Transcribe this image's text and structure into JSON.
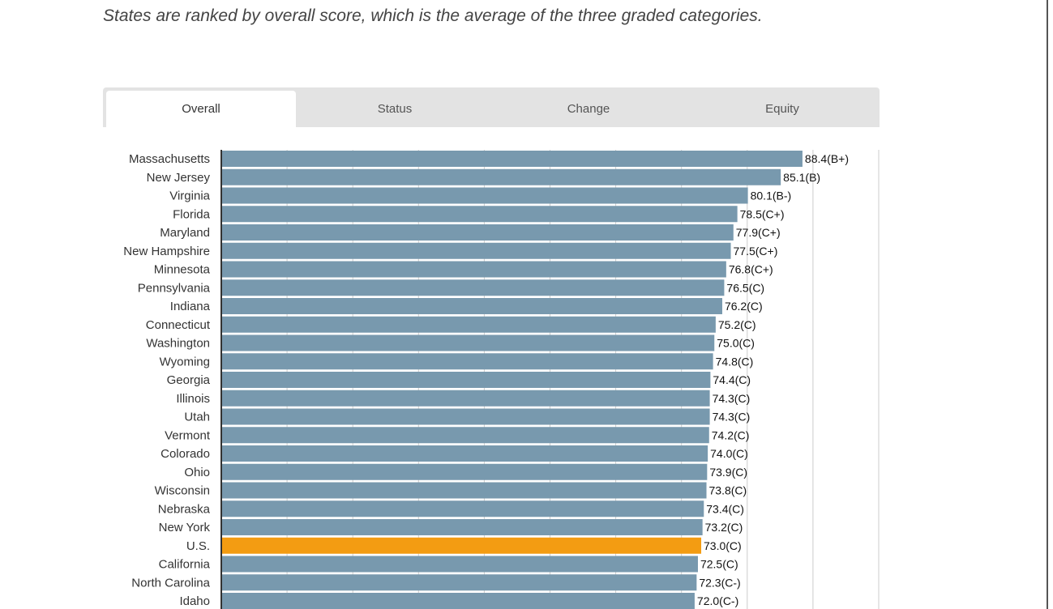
{
  "subtitle": "States are ranked by overall score, which is the average of the three graded categories.",
  "tabs": [
    {
      "label": "Overall",
      "active": true
    },
    {
      "label": "Status",
      "active": false
    },
    {
      "label": "Change",
      "active": false
    },
    {
      "label": "Equity",
      "active": false
    }
  ],
  "colors": {
    "bar": "#7899ae",
    "highlight": "#f39c12",
    "grid": "#cccccc",
    "axis": "#333333"
  },
  "chart_data": {
    "type": "bar",
    "orientation": "horizontal",
    "highlight": "U.S.",
    "xlim": [
      0,
      100
    ],
    "grid": true,
    "categories": [
      "Massachusetts",
      "New Jersey",
      "Virginia",
      "Florida",
      "Maryland",
      "New Hampshire",
      "Minnesota",
      "Pennsylvania",
      "Indiana",
      "Connecticut",
      "Washington",
      "Wyoming",
      "Georgia",
      "Illinois",
      "Utah",
      "Vermont",
      "Colorado",
      "Ohio",
      "Wisconsin",
      "Nebraska",
      "New York",
      "U.S.",
      "California",
      "North Carolina",
      "Idaho"
    ],
    "values": [
      88.4,
      85.1,
      80.1,
      78.5,
      77.9,
      77.5,
      76.8,
      76.5,
      76.2,
      75.2,
      75.0,
      74.8,
      74.4,
      74.3,
      74.3,
      74.2,
      74.0,
      73.9,
      73.8,
      73.4,
      73.2,
      73.0,
      72.5,
      72.3,
      72.0
    ],
    "labels": [
      "88.4(B+)",
      "85.1(B)",
      "80.1(B-)",
      "78.5(C+)",
      "77.9(C+)",
      "77.5(C+)",
      "76.8(C+)",
      "76.5(C)",
      "76.2(C)",
      "75.2(C)",
      "75.0(C)",
      "74.8(C)",
      "74.4(C)",
      "74.3(C)",
      "74.3(C)",
      "74.2(C)",
      "74.0(C)",
      "73.9(C)",
      "73.8(C)",
      "73.4(C)",
      "73.2(C)",
      "73.0(C)",
      "72.5(C)",
      "72.3(C-)",
      "72.0(C-)"
    ]
  }
}
